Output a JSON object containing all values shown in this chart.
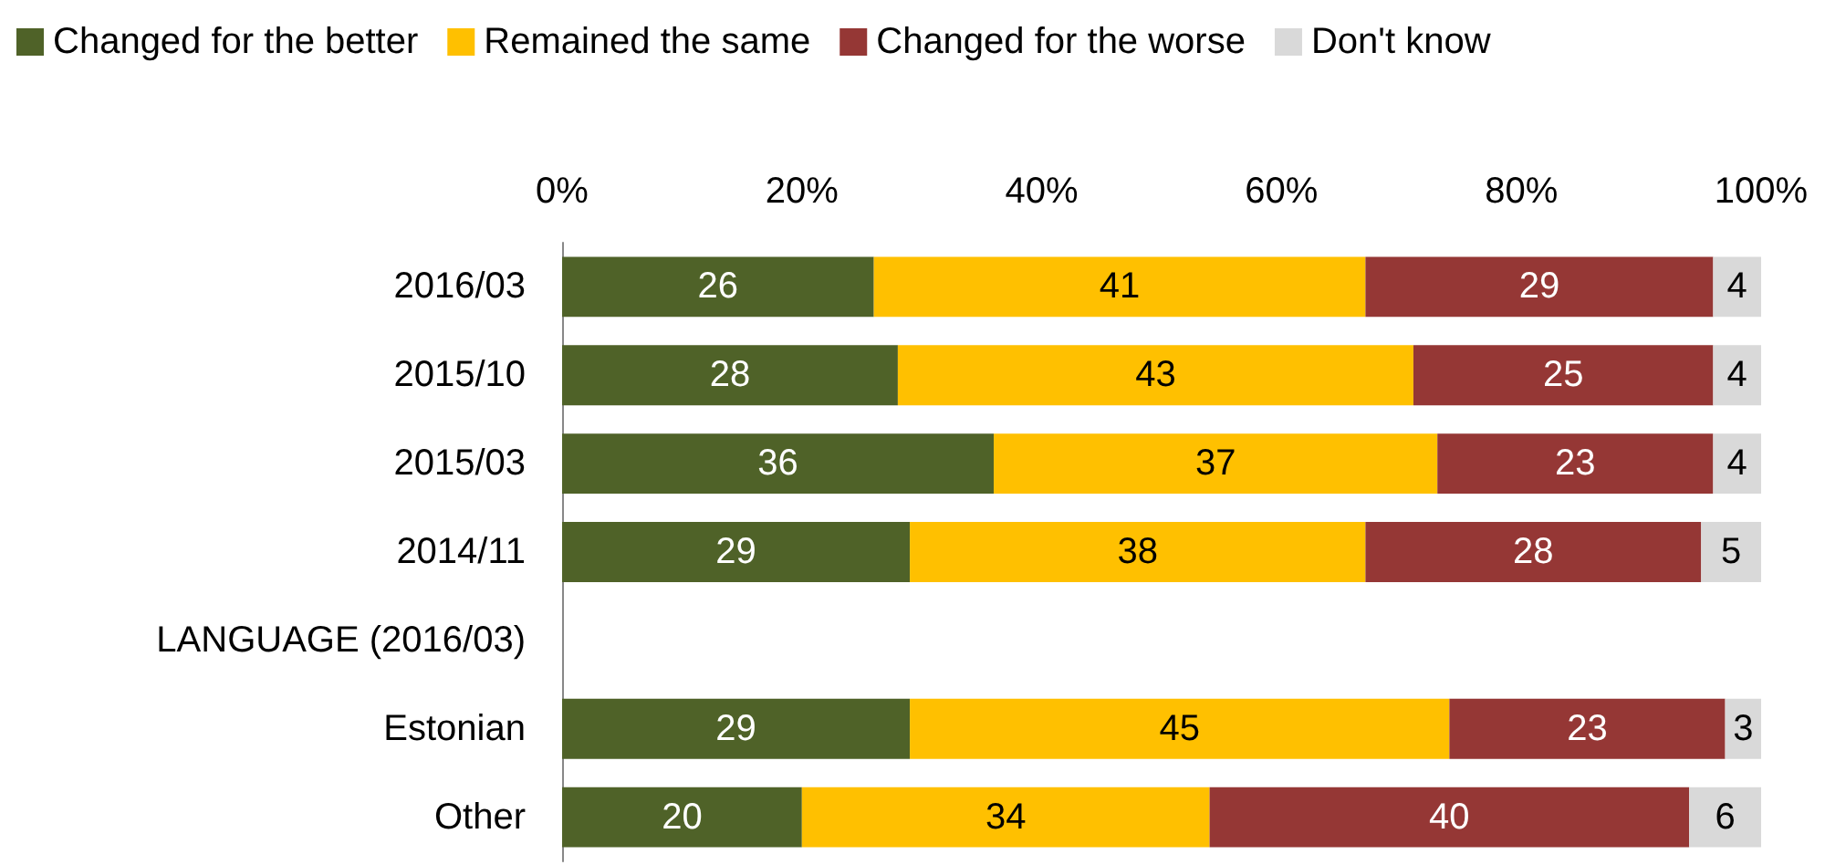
{
  "chart_data": {
    "type": "bar",
    "orientation": "horizontal",
    "stacked": true,
    "data_labels": true,
    "legend": "top left",
    "grid": false,
    "categories": [
      "2016/03",
      "2015/10",
      "2015/03",
      "2014/11",
      "LANGUAGE (2016/03)",
      "Estonian",
      "Other"
    ],
    "xlim": [
      0,
      100
    ],
    "xticks": [
      {
        "value": 0,
        "label": "0%"
      },
      {
        "value": 20,
        "label": "20%"
      },
      {
        "value": 40,
        "label": "40%"
      },
      {
        "value": 60,
        "label": "60%"
      },
      {
        "value": 80,
        "label": "80%"
      },
      {
        "value": 100,
        "label": "100%"
      }
    ],
    "series": [
      {
        "name": "Changed for the better",
        "color": "#4f6228",
        "values": [
          26,
          28,
          36,
          29,
          null,
          29,
          20
        ]
      },
      {
        "name": "Remained the same",
        "color": "#ffc000",
        "values": [
          41,
          43,
          37,
          38,
          null,
          45,
          34
        ]
      },
      {
        "name": "Changed for the worse",
        "color": "#953735",
        "values": [
          29,
          25,
          23,
          28,
          null,
          23,
          40
        ]
      },
      {
        "name": "Don't know",
        "color": "#d9d9d9",
        "values": [
          4,
          4,
          4,
          5,
          null,
          3,
          6
        ]
      }
    ]
  }
}
